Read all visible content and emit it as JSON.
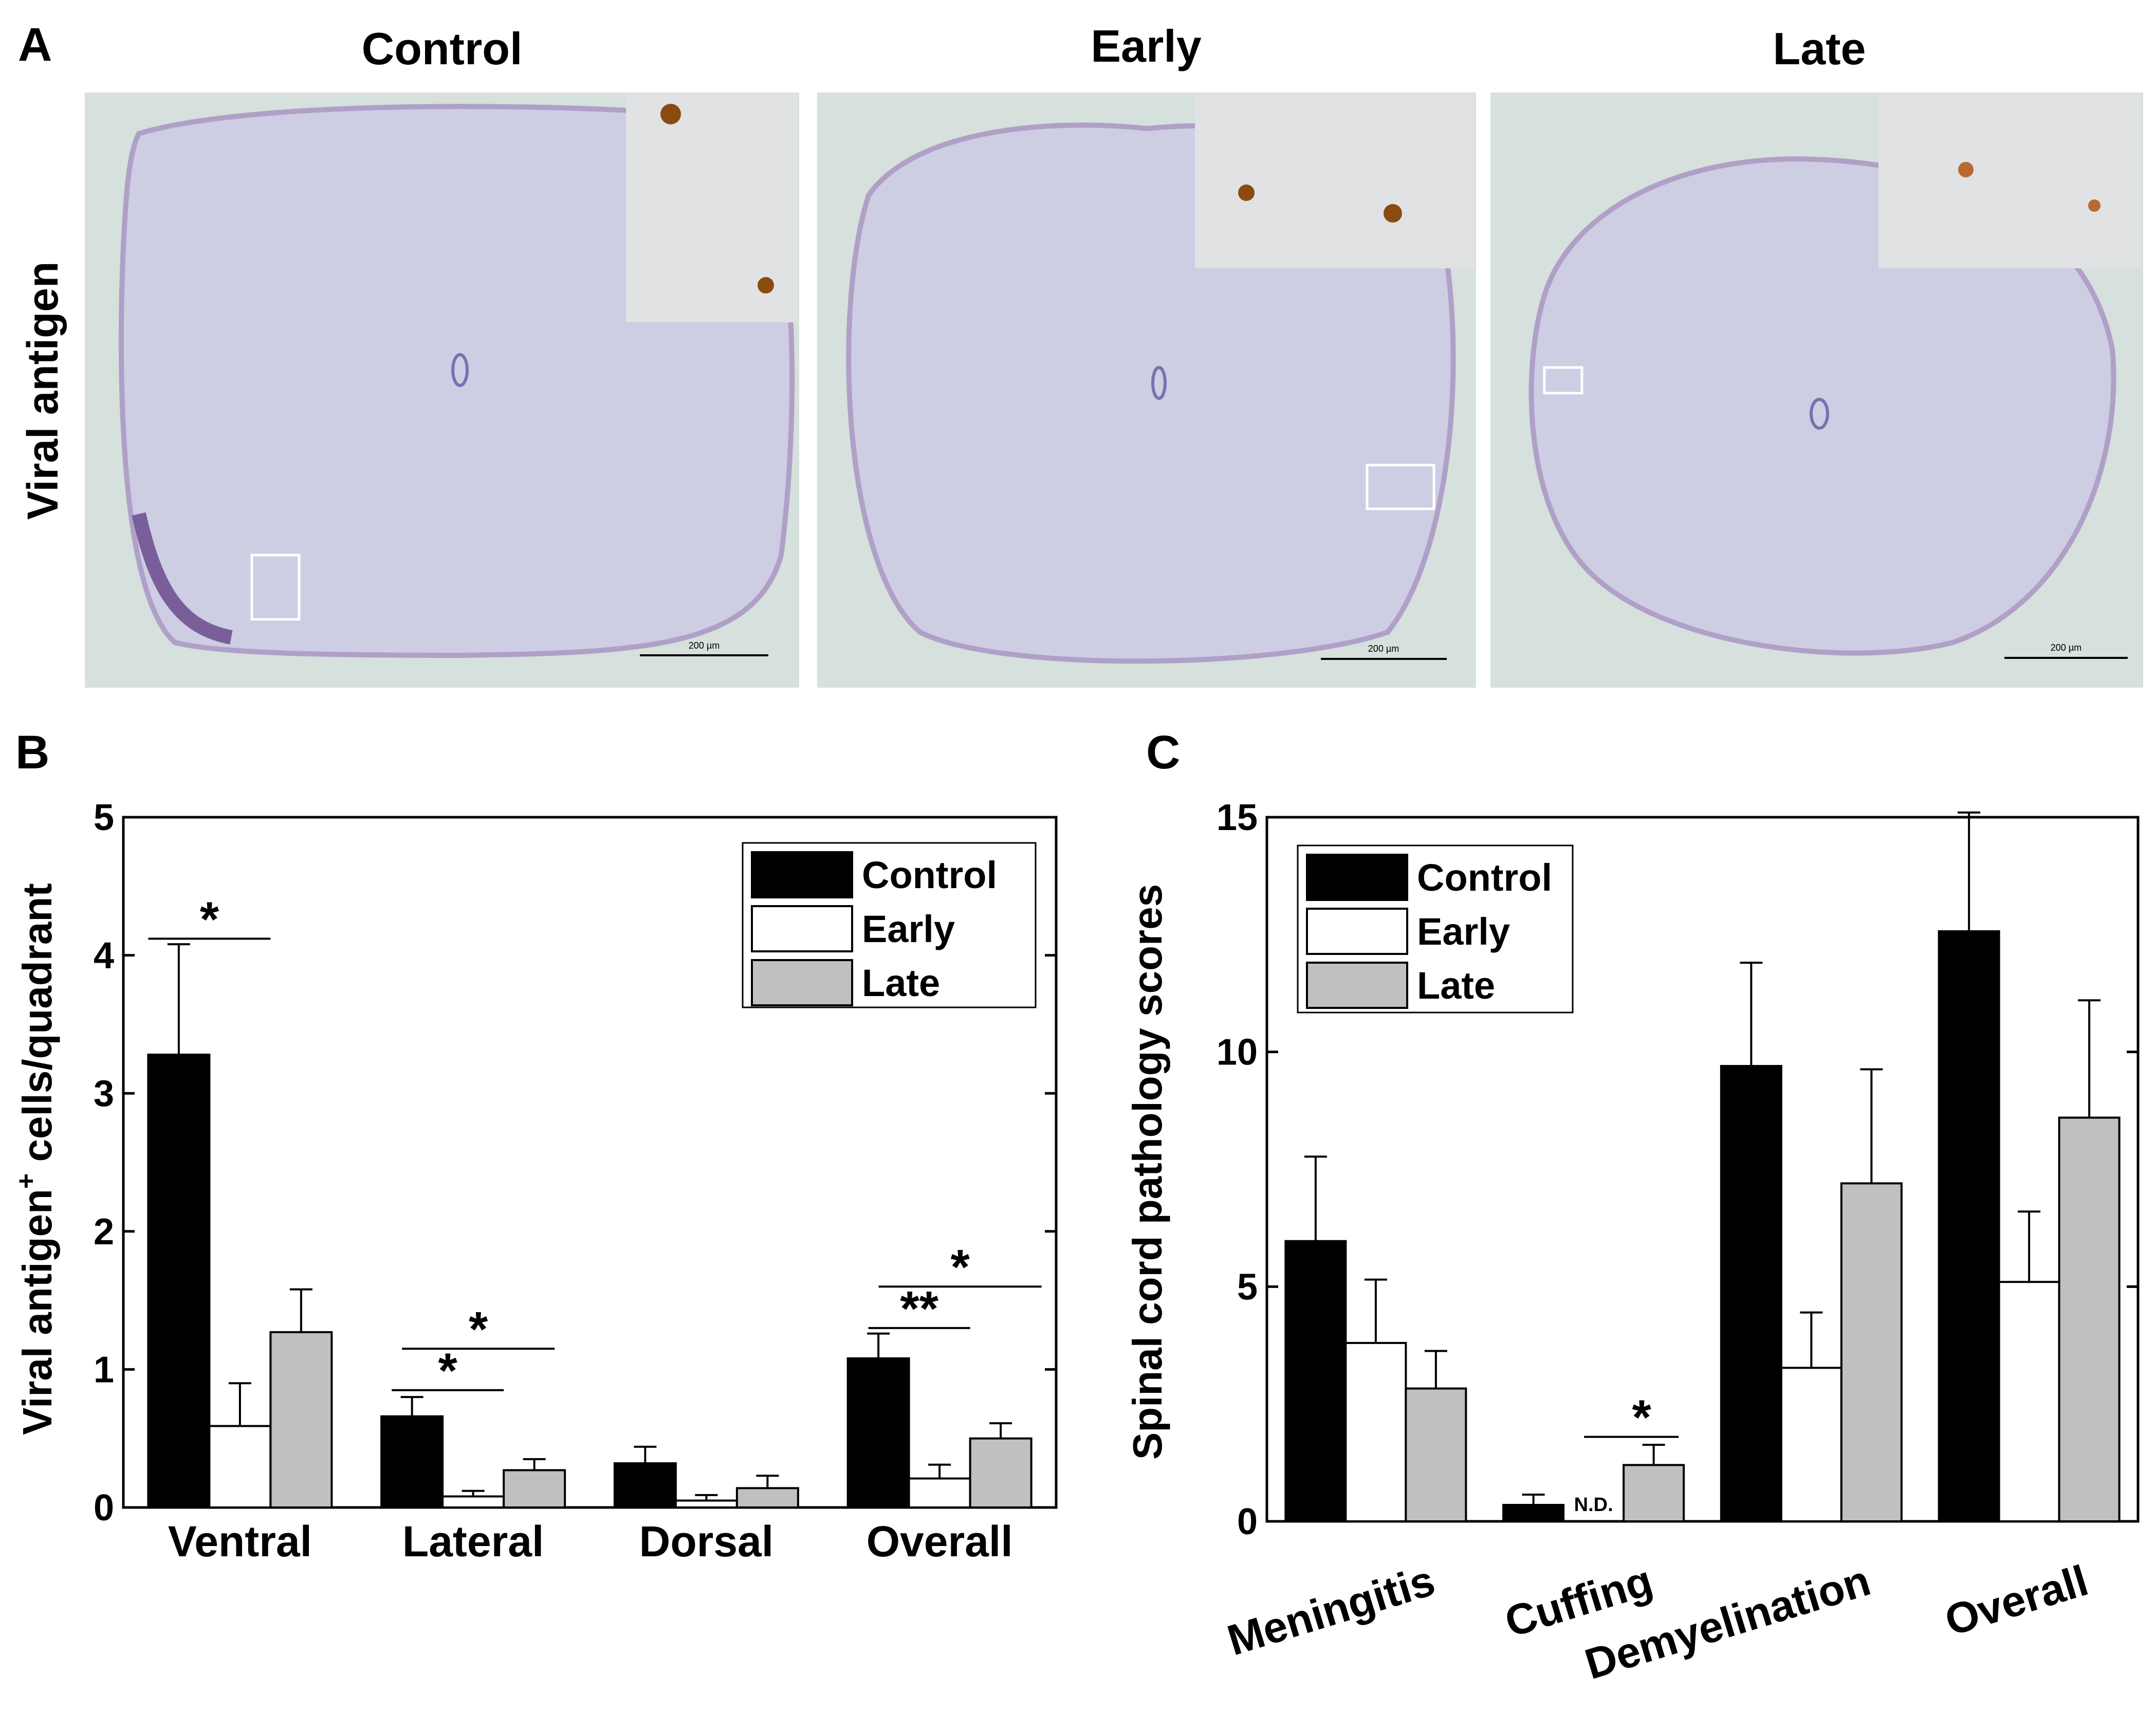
{
  "panel_a": {
    "panel_label": "A",
    "row_label": "Viral antigen",
    "images": [
      {
        "title": "Control",
        "scale_bar": "200 µm"
      },
      {
        "title": "Early",
        "scale_bar": "200 µm"
      },
      {
        "title": "Late",
        "scale_bar": "200 µm"
      }
    ]
  },
  "chart_data": [
    {
      "panel_label": "B",
      "type": "bar",
      "ylabel": "Viral antigen",
      "ylabel_superscript": "+",
      "ylabel_suffix": " cells/quadrant",
      "xlabel": "",
      "ylim": [
        0,
        5
      ],
      "yticks": [
        "0",
        "1",
        "2",
        "3",
        "4",
        "5"
      ],
      "categories": [
        "Ventral",
        "Lateral",
        "Dorsal",
        "Overall"
      ],
      "series": [
        {
          "name": "Control",
          "color": "#000000",
          "values": [
            3.28,
            0.66,
            0.32,
            1.08
          ],
          "errors": [
            0.8,
            0.14,
            0.12,
            0.18
          ]
        },
        {
          "name": "Early",
          "color": "#ffffff",
          "values": [
            0.59,
            0.08,
            0.05,
            0.21
          ],
          "errors": [
            0.31,
            0.04,
            0.04,
            0.1
          ]
        },
        {
          "name": "Late",
          "color": "#c0c0c0",
          "values": [
            1.27,
            0.27,
            0.14,
            0.5
          ],
          "errors": [
            0.31,
            0.08,
            0.09,
            0.11
          ]
        }
      ],
      "legend_position": "top-right",
      "annotations": [
        "*",
        "*",
        "*",
        "**",
        "*"
      ]
    },
    {
      "panel_label": "C",
      "type": "bar",
      "ylabel": "Spinal cord pathology scores",
      "xlabel": "",
      "ylim": [
        0,
        15
      ],
      "yticks": [
        "0",
        "5",
        "10",
        "15"
      ],
      "categories": [
        "Meningitis",
        "Cuffing",
        "Demyelination",
        "Overall"
      ],
      "series": [
        {
          "name": "Control",
          "color": "#000000",
          "values": [
            5.97,
            0.35,
            9.7,
            12.57
          ],
          "errors": [
            1.8,
            0.22,
            2.2,
            2.53
          ]
        },
        {
          "name": "Early",
          "color": "#ffffff",
          "values": [
            3.8,
            null,
            3.27,
            5.1
          ],
          "errors": [
            1.35,
            null,
            1.18,
            1.5
          ]
        },
        {
          "name": "Late",
          "color": "#c0c0c0",
          "values": [
            2.83,
            1.2,
            7.2,
            8.6
          ],
          "errors": [
            0.8,
            0.43,
            2.43,
            2.5
          ]
        }
      ],
      "not_detected_label": "N.D.",
      "legend_position": "top-left",
      "annotations": [
        "*"
      ]
    }
  ]
}
